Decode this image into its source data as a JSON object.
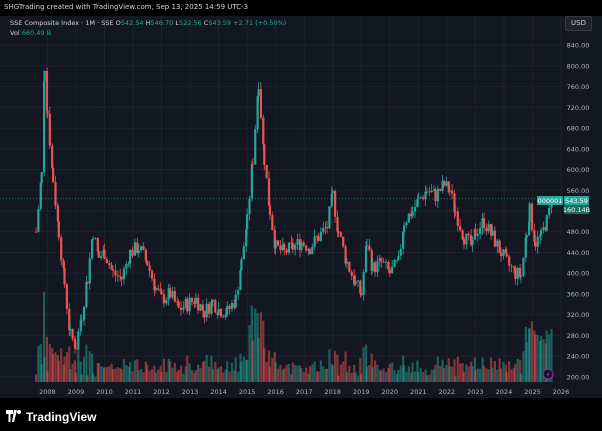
{
  "header": {
    "credit": "SHGTrading created with TradingView.com, Sep 13, 2025 14:59 UTC-3",
    "currency": "USD"
  },
  "legend": {
    "symbol": "SSE Composite Index · 1M · SSE",
    "open_label": "O",
    "open": "542.54",
    "high_label": "H",
    "high": "546.70",
    "low_label": "L",
    "low": "522.56",
    "close_label": "C",
    "close": "543.59",
    "change": "+2.71 (+0.50%)",
    "vol_label": "Vol",
    "vol": "660.49 B"
  },
  "price_tags": {
    "symbol_badge": "000001",
    "last_price": "543.59",
    "last_volume": "160.14B"
  },
  "brand": {
    "name": "TradingView"
  },
  "colors": {
    "up": "#26a69a",
    "down": "#ef5350",
    "background": "#131722",
    "grid": "#1e222d"
  },
  "chart_data": {
    "type": "candlestick",
    "x_ticks": [
      "2008",
      "2009",
      "2010",
      "2011",
      "2012",
      "2013",
      "2014",
      "2015",
      "2016",
      "2017",
      "2018",
      "2019",
      "2020",
      "2021",
      "2022",
      "2023",
      "2024",
      "2025",
      "2026"
    ],
    "y_ticks": [
      "200.00",
      "240.00",
      "280.00",
      "320.00",
      "360.00",
      "400.00",
      "440.00",
      "480.00",
      "520.00",
      "560.00",
      "600.00",
      "640.00",
      "680.00",
      "720.00",
      "760.00",
      "800.00",
      "840.00"
    ],
    "ylim": [
      190,
      850
    ],
    "xlim": [
      2007.6,
      2026.0
    ],
    "vol_max": 360,
    "series": [
      {
        "year": 2007.6,
        "close": 480
      },
      {
        "year": 2007.8,
        "close": 590
      },
      {
        "year": 2007.9,
        "close": 800
      },
      {
        "year": 2008.0,
        "close": 710
      },
      {
        "year": 2008.2,
        "close": 580
      },
      {
        "year": 2008.4,
        "close": 480
      },
      {
        "year": 2008.6,
        "close": 380
      },
      {
        "year": 2008.8,
        "close": 280
      },
      {
        "year": 2009.0,
        "close": 260
      },
      {
        "year": 2009.2,
        "close": 320
      },
      {
        "year": 2009.4,
        "close": 390
      },
      {
        "year": 2009.6,
        "close": 480
      },
      {
        "year": 2009.8,
        "close": 430
      },
      {
        "year": 2010.0,
        "close": 440
      },
      {
        "year": 2010.3,
        "close": 400
      },
      {
        "year": 2010.6,
        "close": 390
      },
      {
        "year": 2010.9,
        "close": 440
      },
      {
        "year": 2011.2,
        "close": 450
      },
      {
        "year": 2011.5,
        "close": 420
      },
      {
        "year": 2011.8,
        "close": 370
      },
      {
        "year": 2012.0,
        "close": 350
      },
      {
        "year": 2012.3,
        "close": 360
      },
      {
        "year": 2012.6,
        "close": 330
      },
      {
        "year": 2012.9,
        "close": 340
      },
      {
        "year": 2013.2,
        "close": 350
      },
      {
        "year": 2013.5,
        "close": 325
      },
      {
        "year": 2013.8,
        "close": 345
      },
      {
        "year": 2014.0,
        "close": 330
      },
      {
        "year": 2014.3,
        "close": 325
      },
      {
        "year": 2014.6,
        "close": 350
      },
      {
        "year": 2014.8,
        "close": 420
      },
      {
        "year": 2015.0,
        "close": 500
      },
      {
        "year": 2015.2,
        "close": 620
      },
      {
        "year": 2015.4,
        "close": 770
      },
      {
        "year": 2015.6,
        "close": 620
      },
      {
        "year": 2015.8,
        "close": 520
      },
      {
        "year": 2016.0,
        "close": 450
      },
      {
        "year": 2016.3,
        "close": 440
      },
      {
        "year": 2016.6,
        "close": 450
      },
      {
        "year": 2016.9,
        "close": 460
      },
      {
        "year": 2017.2,
        "close": 450
      },
      {
        "year": 2017.5,
        "close": 470
      },
      {
        "year": 2017.8,
        "close": 490
      },
      {
        "year": 2018.0,
        "close": 550
      },
      {
        "year": 2018.2,
        "close": 480
      },
      {
        "year": 2018.5,
        "close": 420
      },
      {
        "year": 2018.8,
        "close": 380
      },
      {
        "year": 2019.0,
        "close": 360
      },
      {
        "year": 2019.2,
        "close": 460
      },
      {
        "year": 2019.4,
        "close": 410
      },
      {
        "year": 2019.7,
        "close": 420
      },
      {
        "year": 2020.0,
        "close": 400
      },
      {
        "year": 2020.3,
        "close": 420
      },
      {
        "year": 2020.5,
        "close": 500
      },
      {
        "year": 2020.8,
        "close": 520
      },
      {
        "year": 2021.0,
        "close": 540
      },
      {
        "year": 2021.3,
        "close": 560
      },
      {
        "year": 2021.6,
        "close": 550
      },
      {
        "year": 2021.9,
        "close": 570
      },
      {
        "year": 2022.1,
        "close": 560
      },
      {
        "year": 2022.3,
        "close": 520
      },
      {
        "year": 2022.6,
        "close": 470
      },
      {
        "year": 2022.9,
        "close": 450
      },
      {
        "year": 2023.0,
        "close": 480
      },
      {
        "year": 2023.3,
        "close": 500
      },
      {
        "year": 2023.6,
        "close": 470
      },
      {
        "year": 2023.9,
        "close": 440
      },
      {
        "year": 2024.1,
        "close": 420
      },
      {
        "year": 2024.4,
        "close": 400
      },
      {
        "year": 2024.6,
        "close": 395
      },
      {
        "year": 2024.8,
        "close": 480
      },
      {
        "year": 2024.9,
        "close": 520
      },
      {
        "year": 2025.1,
        "close": 460
      },
      {
        "year": 2025.3,
        "close": 470
      },
      {
        "year": 2025.5,
        "close": 500
      },
      {
        "year": 2025.7,
        "close": 543.59
      }
    ]
  }
}
